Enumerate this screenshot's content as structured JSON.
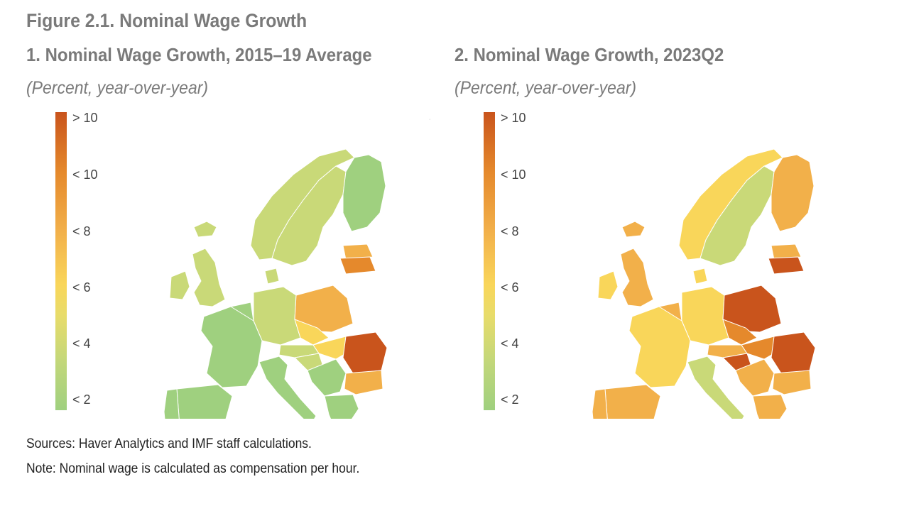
{
  "figure_title": "Figure 2.1. Nominal Wage Growth",
  "legend": {
    "labels": [
      "> 10",
      "< 10",
      "< 8",
      "< 6",
      "< 4",
      "< 2"
    ],
    "colors": {
      "gt10": "#c9541c",
      "lt10": "#e5892c",
      "lt8": "#f2b04a",
      "lt6": "#f9d65a",
      "lt4": "#c9d978",
      "lt2": "#9fd07f"
    }
  },
  "panels": [
    {
      "title": "1. Nominal Wage Growth, 2015–19 Average",
      "subtitle": "(Percent, year-over-year)",
      "regions": {
        "iceland": "lt4",
        "norway": "lt4",
        "sweden": "lt4",
        "finland": "lt2",
        "uk": "lt4",
        "ireland": "lt4",
        "france": "lt2",
        "spain": "lt2",
        "portugal": "lt2",
        "benelux": "lt2",
        "germany": "lt4",
        "denmark": "lt4",
        "poland": "lt8",
        "baltics": "lt8",
        "latvia": "lt10",
        "czech": "lt6",
        "austria": "lt4",
        "hungary": "lt6",
        "italy": "lt2",
        "balkans": "lt2",
        "croatia": "lt4",
        "romania": "gt10",
        "bulgaria": "lt8",
        "greece": "lt2",
        "cyprus": "lt2"
      }
    },
    {
      "title": "2. Nominal Wage Growth, 2023Q2",
      "subtitle": "(Percent, year-over-year)",
      "regions": {
        "iceland": "lt8",
        "norway": "lt6",
        "sweden": "lt4",
        "finland": "lt8",
        "uk": "lt8",
        "ireland": "lt6",
        "france": "lt6",
        "spain": "lt8",
        "portugal": "lt8",
        "benelux": "lt8",
        "germany": "lt6",
        "denmark": "lt6",
        "poland": "gt10",
        "baltics": "lt8",
        "latvia": "gt10",
        "czech": "lt10",
        "austria": "lt8",
        "hungary": "lt10",
        "italy": "lt4",
        "balkans": "lt8",
        "croatia": "gt10",
        "romania": "gt10",
        "bulgaria": "lt8",
        "greece": "lt8",
        "cyprus": "lt4"
      }
    }
  ],
  "footer": {
    "sources": "Sources: Haver Analytics and IMF staff calculations.",
    "note": "Note: Nominal wage is calculated as compensation per hour."
  }
}
